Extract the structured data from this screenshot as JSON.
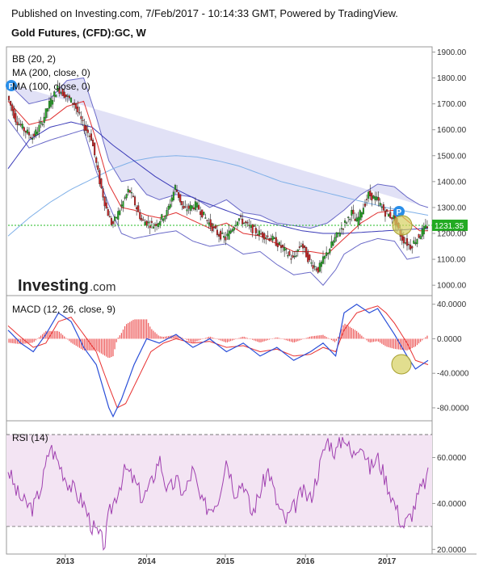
{
  "header": {
    "published": "Published on Investing.com, 7/Feb/2017 - 10:14:33 GMT, Powered by TradingView.",
    "instrument": "Gold Futures, (CFD):GC, W"
  },
  "logo": {
    "main": "Investing",
    "suffix": ".com"
  },
  "colors": {
    "up": "#22aa22",
    "down": "#cc2222",
    "bb_fill": "#c8c8ee",
    "bb_line": "#6a6ac8",
    "ma200": "#7fb0e8",
    "ma100": "#3a3ab8",
    "ma20": "#e03030",
    "macd": "#2a4fd8",
    "signal": "#e83030",
    "rsi": "#a040b0",
    "rsi_band": "#f3e4f3",
    "price_line": "#22bb22",
    "price_tag": "#22aa22",
    "marker": "#2a8ee8",
    "highlight": "#d6d060"
  },
  "chart_data": [
    {
      "type": "candlestick",
      "name": "price",
      "legend": [
        "BB (20, 2)",
        "MA (200, close, 0)",
        "MA (100, close, 0)"
      ],
      "y_ticks": [
        "1900.00",
        "1800.00",
        "1700.00",
        "1600.00",
        "1500.00",
        "1400.00",
        "1300.00",
        "1200.00",
        "1100.00",
        "1000.00"
      ],
      "ylim": [
        960,
        1920
      ],
      "last_price": "1231.35",
      "last_value": 1231.35,
      "close_path_t": [
        0,
        0.02,
        0.04,
        0.06,
        0.08,
        0.1,
        0.12,
        0.14,
        0.16,
        0.18,
        0.2,
        0.22,
        0.235,
        0.25,
        0.27,
        0.29,
        0.3,
        0.32,
        0.35,
        0.38,
        0.4,
        0.42,
        0.45,
        0.48,
        0.5,
        0.52,
        0.55,
        0.58,
        0.6,
        0.63,
        0.65,
        0.68,
        0.7,
        0.72,
        0.74,
        0.76,
        0.78,
        0.8,
        0.82,
        0.83,
        0.85,
        0.86,
        0.88,
        0.9,
        0.92,
        0.94,
        0.96,
        0.98,
        1
      ],
      "close_path_v": [
        1730,
        1640,
        1600,
        1570,
        1620,
        1700,
        1760,
        1730,
        1700,
        1620,
        1570,
        1400,
        1300,
        1230,
        1300,
        1370,
        1330,
        1250,
        1230,
        1280,
        1380,
        1290,
        1310,
        1240,
        1200,
        1180,
        1260,
        1220,
        1200,
        1180,
        1150,
        1100,
        1160,
        1090,
        1060,
        1120,
        1180,
        1230,
        1280,
        1240,
        1310,
        1350,
        1330,
        1280,
        1260,
        1180,
        1150,
        1190,
        1230
      ],
      "bb_upper_t": [
        0,
        0.05,
        0.1,
        0.14,
        0.18,
        0.21,
        0.24,
        0.27,
        0.3,
        0.33,
        0.36,
        0.4,
        0.44,
        0.48,
        0.52,
        0.56,
        0.6,
        0.64,
        0.68,
        0.72,
        0.76,
        0.8,
        0.84,
        0.88,
        0.92,
        0.95,
        0.98,
        1
      ],
      "bb_upper_v": [
        1780,
        1700,
        1720,
        1790,
        1800,
        1650,
        1480,
        1400,
        1410,
        1350,
        1330,
        1350,
        1340,
        1300,
        1330,
        1280,
        1270,
        1240,
        1230,
        1220,
        1240,
        1290,
        1350,
        1390,
        1380,
        1340,
        1310,
        1300
      ],
      "bb_lower_t": [
        0,
        0.05,
        0.1,
        0.14,
        0.18,
        0.21,
        0.24,
        0.27,
        0.3,
        0.33,
        0.36,
        0.4,
        0.44,
        0.48,
        0.52,
        0.56,
        0.6,
        0.64,
        0.68,
        0.72,
        0.75,
        0.78,
        0.8,
        0.84,
        0.88,
        0.92,
        0.95,
        0.98,
        1
      ],
      "bb_lower_v": [
        1640,
        1530,
        1560,
        1580,
        1600,
        1440,
        1310,
        1200,
        1180,
        1190,
        1200,
        1210,
        1170,
        1150,
        1160,
        1120,
        1130,
        1080,
        1040,
        1050,
        1000,
        1060,
        1120,
        1160,
        1180,
        1170,
        1100,
        1110
      ],
      "ma20_t": [
        0,
        0.05,
        0.1,
        0.14,
        0.18,
        0.21,
        0.24,
        0.27,
        0.3,
        0.33,
        0.36,
        0.4,
        0.44,
        0.48,
        0.52,
        0.56,
        0.6,
        0.64,
        0.68,
        0.72,
        0.76,
        0.8,
        0.84,
        0.88,
        0.92,
        0.95,
        0.98,
        1
      ],
      "ma20_v": [
        1710,
        1620,
        1640,
        1690,
        1710,
        1560,
        1390,
        1300,
        1290,
        1270,
        1260,
        1280,
        1250,
        1220,
        1240,
        1200,
        1190,
        1160,
        1130,
        1130,
        1120,
        1180,
        1240,
        1280,
        1290,
        1250,
        1210,
        1210
      ],
      "ma100_t": [
        0,
        0.05,
        0.1,
        0.15,
        0.2,
        0.25,
        0.3,
        0.35,
        0.4,
        0.45,
        0.5,
        0.55,
        0.6,
        0.65,
        0.7,
        0.75,
        0.8,
        0.85,
        0.9,
        0.95,
        1
      ],
      "ma100_v": [
        1450,
        1560,
        1610,
        1630,
        1610,
        1540,
        1480,
        1420,
        1370,
        1330,
        1300,
        1270,
        1250,
        1230,
        1210,
        1200,
        1200,
        1205,
        1210,
        1215,
        1220
      ],
      "ma200_t": [
        0,
        0.05,
        0.1,
        0.15,
        0.2,
        0.25,
        0.3,
        0.35,
        0.4,
        0.45,
        0.5,
        0.55,
        0.6,
        0.65,
        0.7,
        0.75,
        0.8,
        0.85,
        0.9,
        0.95,
        1
      ],
      "ma200_v": [
        1190,
        1260,
        1320,
        1370,
        1410,
        1450,
        1480,
        1495,
        1500,
        1495,
        1480,
        1460,
        1430,
        1400,
        1380,
        1360,
        1340,
        1320,
        1300,
        1285,
        1270
      ]
    },
    {
      "type": "histogram+line",
      "name": "macd",
      "legend": "MACD (12, 26, close, 9)",
      "y_ticks": [
        "40.0000",
        "0.0000",
        "-40.0000",
        "-80.0000"
      ],
      "ylim": [
        -95,
        50
      ],
      "macd_t": [
        0,
        0.03,
        0.06,
        0.09,
        0.12,
        0.15,
        0.18,
        0.21,
        0.24,
        0.25,
        0.27,
        0.3,
        0.33,
        0.36,
        0.4,
        0.44,
        0.48,
        0.52,
        0.56,
        0.6,
        0.64,
        0.68,
        0.72,
        0.75,
        0.78,
        0.8,
        0.83,
        0.86,
        0.88,
        0.9,
        0.92,
        0.95,
        0.97,
        1
      ],
      "macd_v": [
        10,
        -5,
        -15,
        5,
        30,
        20,
        -10,
        -30,
        -80,
        -90,
        -70,
        -30,
        0,
        -5,
        5,
        -10,
        0,
        -15,
        -5,
        -20,
        -10,
        -25,
        -15,
        -5,
        -20,
        30,
        40,
        30,
        35,
        20,
        5,
        -20,
        -35,
        -25
      ],
      "signal_t": [
        0,
        0.03,
        0.06,
        0.09,
        0.12,
        0.15,
        0.18,
        0.21,
        0.24,
        0.26,
        0.28,
        0.31,
        0.34,
        0.37,
        0.4,
        0.44,
        0.48,
        0.52,
        0.56,
        0.6,
        0.64,
        0.68,
        0.72,
        0.75,
        0.78,
        0.8,
        0.83,
        0.86,
        0.88,
        0.9,
        0.92,
        0.95,
        0.97,
        1
      ],
      "signal_v": [
        15,
        2,
        -10,
        -5,
        20,
        25,
        5,
        -15,
        -55,
        -80,
        -75,
        -45,
        -15,
        -5,
        0,
        -5,
        -3,
        -10,
        -8,
        -15,
        -12,
        -20,
        -18,
        -10,
        -15,
        10,
        30,
        35,
        38,
        30,
        18,
        -5,
        -25,
        -30
      ]
    },
    {
      "type": "line",
      "name": "rsi",
      "legend": "RSI (14)",
      "y_ticks": [
        "60.0000",
        "40.0000",
        "20.0000"
      ],
      "ylim": [
        18,
        76
      ],
      "band": [
        30,
        70
      ],
      "rsi_t": [
        0,
        0.02,
        0.04,
        0.06,
        0.08,
        0.1,
        0.12,
        0.14,
        0.16,
        0.18,
        0.2,
        0.22,
        0.23,
        0.24,
        0.26,
        0.28,
        0.3,
        0.32,
        0.34,
        0.36,
        0.38,
        0.4,
        0.42,
        0.44,
        0.46,
        0.48,
        0.5,
        0.52,
        0.54,
        0.56,
        0.58,
        0.6,
        0.62,
        0.64,
        0.66,
        0.68,
        0.7,
        0.72,
        0.74,
        0.76,
        0.78,
        0.8,
        0.82,
        0.84,
        0.86,
        0.88,
        0.9,
        0.92,
        0.94,
        0.96,
        0.98,
        1
      ],
      "rsi_v": [
        55,
        45,
        40,
        38,
        48,
        65,
        58,
        50,
        45,
        40,
        30,
        25,
        22,
        35,
        45,
        55,
        50,
        42,
        48,
        60,
        45,
        50,
        44,
        55,
        40,
        38,
        42,
        60,
        45,
        50,
        35,
        45,
        55,
        40,
        32,
        38,
        45,
        42,
        55,
        68,
        62,
        70,
        60,
        68,
        55,
        60,
        50,
        40,
        30,
        35,
        45,
        52
      ]
    }
  ],
  "x_axis": {
    "ticks": [
      "2013",
      "2014",
      "2015",
      "2016",
      "2017"
    ],
    "tick_t": [
      0.136,
      0.33,
      0.517,
      0.708,
      0.902
    ]
  }
}
